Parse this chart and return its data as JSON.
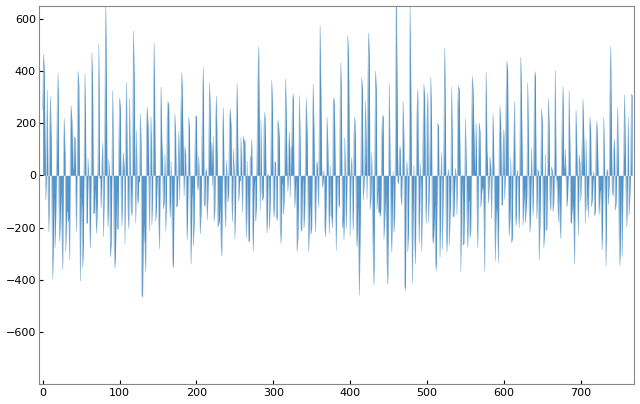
{
  "title": "",
  "xlabel": "",
  "ylabel": "",
  "xlim": [
    -5,
    770
  ],
  "ylim": [
    -800,
    650
  ],
  "yticks": [
    -600,
    -400,
    -200,
    0,
    200,
    400,
    600
  ],
  "xticks": [
    0,
    100,
    200,
    300,
    400,
    500,
    600,
    700
  ],
  "line_color": "#3d85c0",
  "background_color": "#ffffff",
  "seed": 42,
  "n_points": 768,
  "figsize": [
    6.4,
    4.04
  ],
  "dpi": 100
}
